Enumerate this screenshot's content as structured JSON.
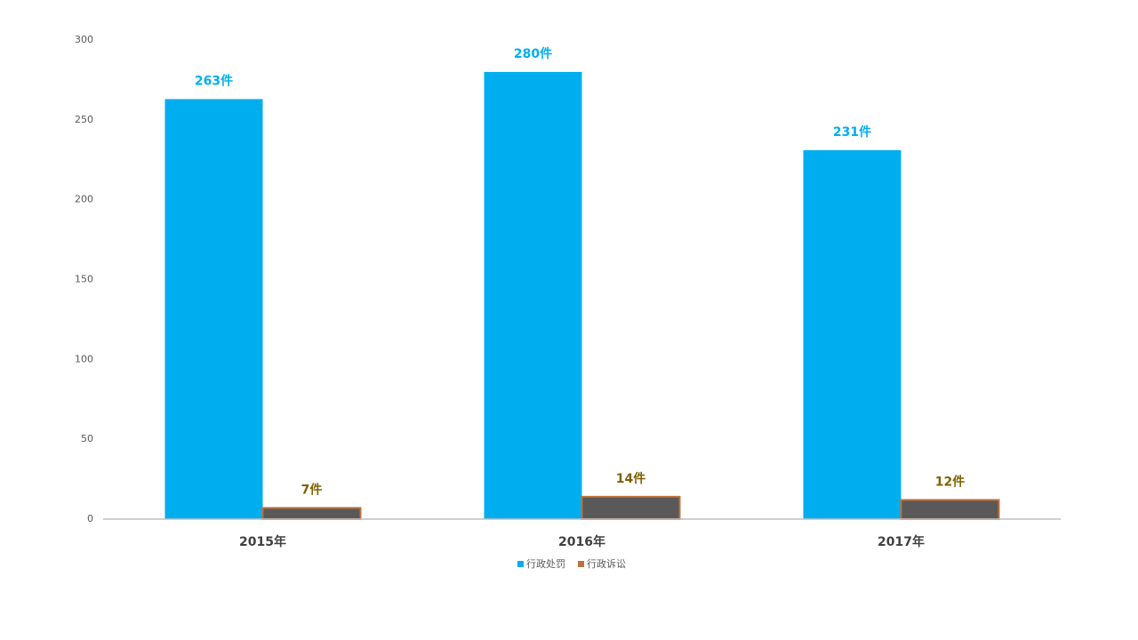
{
  "chart_data": {
    "type": "bar",
    "categories": [
      "2015年",
      "2016年",
      "2017年"
    ],
    "series": [
      {
        "name": "行政处罚",
        "color": "#00AEEF",
        "label_color": "#00AEEF",
        "values": [
          263,
          280,
          231
        ],
        "value_labels": [
          "263件",
          "280件",
          "231件"
        ]
      },
      {
        "name": "行政诉讼",
        "color": "#595959",
        "edgecolor": "#C0703A",
        "label_color": "#7F6000",
        "values": [
          7,
          14,
          12
        ],
        "value_labels": [
          "7件",
          "14件",
          "12件"
        ]
      }
    ],
    "ylim": [
      0,
      300
    ],
    "yticks": [
      0,
      50,
      100,
      150,
      200,
      250,
      300
    ],
    "grid": false,
    "legend": "bottom"
  }
}
